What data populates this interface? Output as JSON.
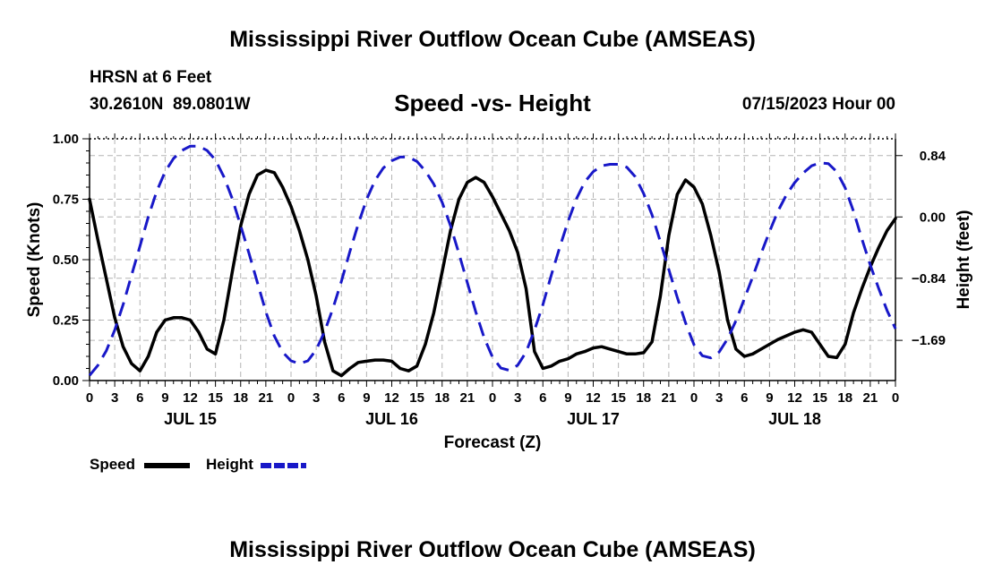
{
  "header": {
    "title": "Mississippi River Outflow Ocean Cube (AMSEAS)",
    "station": "HRSN at 6 Feet",
    "coords": "30.2610N  89.0801W",
    "chart_title": "Speed -vs- Height",
    "datetime": "07/15/2023 Hour 00"
  },
  "footer": {
    "title": "Mississippi River Outflow Ocean Cube (AMSEAS)"
  },
  "colors": {
    "speed": "#000000",
    "height": "#1818c8",
    "grid": "#b4b4b4"
  },
  "legend": {
    "speed_label": "Speed",
    "height_label": "Height"
  },
  "chart_data": {
    "type": "line",
    "title": "Speed -vs- Height",
    "xlabel": "Forecast (Z)",
    "ylabel": "Speed (Knots)",
    "y2label": "Height (feet)",
    "xlim": [
      0,
      96
    ],
    "ylim": [
      0,
      1
    ],
    "y2lim": [
      -2.24,
      1.07
    ],
    "grid": true,
    "x_ticks": [
      0,
      3,
      6,
      9,
      12,
      15,
      18,
      21,
      24,
      27,
      30,
      33,
      36,
      39,
      42,
      45,
      48,
      51,
      54,
      57,
      60,
      63,
      66,
      69,
      72,
      75,
      78,
      81,
      84,
      87,
      90,
      93,
      96
    ],
    "x_tick_labels": [
      "0",
      "3",
      "6",
      "9",
      "12",
      "15",
      "18",
      "21",
      "0",
      "3",
      "6",
      "9",
      "12",
      "15",
      "18",
      "21",
      "0",
      "3",
      "6",
      "9",
      "12",
      "15",
      "18",
      "21",
      "0",
      "3",
      "6",
      "9",
      "12",
      "15",
      "18",
      "21",
      "0"
    ],
    "date_labels": [
      {
        "label": "JUL 15",
        "x": 12
      },
      {
        "label": "JUL 16",
        "x": 36
      },
      {
        "label": "JUL 17",
        "x": 60
      },
      {
        "label": "JUL 18",
        "x": 84
      }
    ],
    "y_ticks": [
      0,
      0.25,
      0.5,
      0.75,
      1.0
    ],
    "y_tick_labels": [
      "0.00",
      "0.25",
      "0.50",
      "0.75",
      "1.00"
    ],
    "y2_ticks": [
      0.84,
      0.0,
      -0.84,
      -1.69
    ],
    "y2_tick_labels": [
      "0.84",
      "0.00",
      "−0.84",
      "−1.69"
    ],
    "series": [
      {
        "name": "Speed",
        "axis": "left",
        "x": [
          0,
          1,
          2,
          3,
          4,
          5,
          6,
          7,
          8,
          9,
          10,
          11,
          12,
          13,
          14,
          15,
          16,
          17,
          18,
          19,
          20,
          21,
          22,
          23,
          24,
          25,
          26,
          27,
          28,
          29,
          30,
          31,
          32,
          33,
          34,
          35,
          36,
          37,
          38,
          39,
          40,
          41,
          42,
          43,
          44,
          45,
          46,
          47,
          48,
          49,
          50,
          51,
          52,
          53,
          54,
          55,
          56,
          57,
          58,
          59,
          60,
          61,
          62,
          63,
          64,
          65,
          66,
          67,
          68,
          69,
          70,
          71,
          72,
          73,
          74,
          75,
          76,
          77,
          78,
          79,
          80,
          81,
          82,
          83,
          84,
          85,
          86,
          87,
          88,
          89,
          90,
          91,
          92,
          93,
          94,
          95,
          96
        ],
        "values": [
          0.75,
          0.58,
          0.42,
          0.26,
          0.14,
          0.07,
          0.04,
          0.1,
          0.2,
          0.25,
          0.26,
          0.26,
          0.25,
          0.2,
          0.13,
          0.11,
          0.25,
          0.45,
          0.64,
          0.77,
          0.85,
          0.87,
          0.86,
          0.8,
          0.72,
          0.62,
          0.5,
          0.35,
          0.16,
          0.04,
          0.02,
          0.05,
          0.075,
          0.08,
          0.085,
          0.085,
          0.08,
          0.05,
          0.04,
          0.06,
          0.15,
          0.28,
          0.45,
          0.62,
          0.75,
          0.82,
          0.84,
          0.82,
          0.76,
          0.69,
          0.62,
          0.53,
          0.38,
          0.12,
          0.05,
          0.06,
          0.08,
          0.09,
          0.11,
          0.12,
          0.135,
          0.14,
          0.13,
          0.12,
          0.11,
          0.11,
          0.115,
          0.16,
          0.35,
          0.6,
          0.77,
          0.83,
          0.8,
          0.73,
          0.6,
          0.45,
          0.25,
          0.13,
          0.1,
          0.11,
          0.13,
          0.15,
          0.17,
          0.185,
          0.2,
          0.21,
          0.2,
          0.15,
          0.1,
          0.095,
          0.15,
          0.28,
          0.38,
          0.47,
          0.55,
          0.62,
          0.67
        ]
      },
      {
        "name": "Height",
        "axis": "right",
        "x": [
          0,
          1,
          2,
          3,
          4,
          5,
          6,
          7,
          8,
          9,
          10,
          11,
          12,
          13,
          14,
          15,
          16,
          17,
          18,
          19,
          20,
          21,
          22,
          23,
          24,
          25,
          26,
          27,
          28,
          29,
          30,
          31,
          32,
          33,
          34,
          35,
          36,
          37,
          38,
          39,
          40,
          41,
          42,
          43,
          44,
          45,
          46,
          47,
          48,
          49,
          50,
          51,
          52,
          53,
          54,
          55,
          56,
          57,
          58,
          59,
          60,
          61,
          62,
          63,
          64,
          65,
          66,
          67,
          68,
          69,
          70,
          71,
          72,
          73,
          74,
          75,
          76,
          77,
          78,
          79,
          80,
          81,
          82,
          83,
          84,
          85,
          86,
          87,
          88,
          89,
          90,
          91,
          92,
          93,
          94,
          95,
          96
        ],
        "values": [
          -2.17,
          -2.03,
          -1.83,
          -1.55,
          -1.2,
          -0.8,
          -0.4,
          0.0,
          0.35,
          0.62,
          0.8,
          0.91,
          0.97,
          0.97,
          0.91,
          0.78,
          0.55,
          0.25,
          -0.12,
          -0.5,
          -0.9,
          -1.3,
          -1.63,
          -1.85,
          -1.97,
          -2.01,
          -1.97,
          -1.82,
          -1.57,
          -1.25,
          -0.88,
          -0.48,
          -0.1,
          0.24,
          0.5,
          0.67,
          0.77,
          0.82,
          0.82,
          0.76,
          0.63,
          0.45,
          0.2,
          -0.12,
          -0.5,
          -0.9,
          -1.3,
          -1.65,
          -1.92,
          -2.07,
          -2.1,
          -2.03,
          -1.85,
          -1.55,
          -1.2,
          -0.8,
          -0.42,
          -0.06,
          0.25,
          0.48,
          0.62,
          0.7,
          0.72,
          0.72,
          0.68,
          0.55,
          0.32,
          0.03,
          -0.34,
          -0.72,
          -1.1,
          -1.45,
          -1.75,
          -1.9,
          -1.93,
          -1.85,
          -1.67,
          -1.42,
          -1.12,
          -0.82,
          -0.5,
          -0.2,
          0.08,
          0.3,
          0.47,
          0.6,
          0.7,
          0.74,
          0.73,
          0.62,
          0.4,
          0.08,
          -0.3,
          -0.66,
          -0.98,
          -1.28,
          -1.53
        ]
      }
    ]
  }
}
